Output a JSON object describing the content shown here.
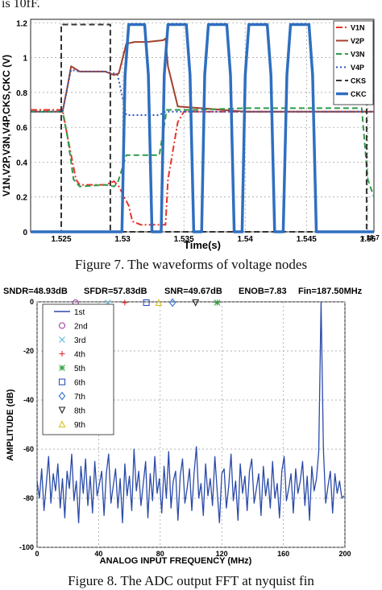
{
  "top_text": "is 10fF.",
  "figure7": {
    "caption": "Figure 7. The waveforms of voltage nodes",
    "chart_data": {
      "type": "line",
      "xlabel": "Time(s)",
      "ylabel": "V1N,V2P,V3N,V4P,CKS,CKC (V)",
      "x_multiplier": "x 10-7",
      "xlim": [
        1.5225,
        1.5505
      ],
      "ylim": [
        0,
        1.22
      ],
      "xticks": [
        "1.525",
        "1.53",
        "1.535",
        "1.54",
        "1.545",
        "1.55"
      ],
      "xtick_values": [
        1.525,
        1.53,
        1.535,
        1.54,
        1.545,
        1.55
      ],
      "yticks": [
        "0",
        "0.2",
        "0.4",
        "0.6",
        "0.8",
        "1",
        "1.2"
      ],
      "ytick_values": [
        0,
        0.2,
        0.4,
        0.6,
        0.8,
        1.0,
        1.2
      ],
      "grid": true,
      "legend_position": "top-right",
      "series": [
        {
          "name": "V1N",
          "color": "#e8332b",
          "style": "dashdot",
          "width": 2,
          "x": [
            1.5225,
            1.5251,
            1.5255,
            1.5262,
            1.5265,
            1.5286,
            1.5293,
            1.5297,
            1.5305,
            1.5308,
            1.5315,
            1.5335,
            1.5337,
            1.5345,
            1.535,
            1.54,
            1.545,
            1.5495,
            1.5505
          ],
          "y": [
            0.7,
            0.7,
            0.55,
            0.3,
            0.27,
            0.27,
            0.29,
            0.26,
            0.15,
            0.06,
            0.04,
            0.04,
            0.3,
            0.63,
            0.69,
            0.69,
            0.69,
            0.69,
            0.69
          ]
        },
        {
          "name": "V2P",
          "color": "#a3402c",
          "style": "solid",
          "width": 2,
          "x": [
            1.5225,
            1.5251,
            1.5255,
            1.5258,
            1.5265,
            1.5286,
            1.5293,
            1.5297,
            1.5303,
            1.531,
            1.532,
            1.5333,
            1.5335,
            1.5337,
            1.5345,
            1.54,
            1.545,
            1.5495,
            1.5505
          ],
          "y": [
            0.69,
            0.69,
            0.83,
            0.95,
            0.92,
            0.92,
            0.9,
            0.91,
            1.08,
            1.09,
            1.09,
            1.1,
            1.11,
            0.95,
            0.72,
            0.69,
            0.69,
            0.69,
            0.69
          ]
        },
        {
          "name": "V3N",
          "color": "#2e9b47",
          "style": "dashed",
          "width": 2,
          "x": [
            1.5225,
            1.5251,
            1.5255,
            1.526,
            1.5265,
            1.5286,
            1.5293,
            1.5296,
            1.5303,
            1.531,
            1.532,
            1.533,
            1.5336,
            1.5345,
            1.536,
            1.54,
            1.545,
            1.5495,
            1.55,
            1.5505
          ],
          "y": [
            0.69,
            0.69,
            0.55,
            0.3,
            0.26,
            0.27,
            0.26,
            0.28,
            0.44,
            0.44,
            0.44,
            0.44,
            0.7,
            0.7,
            0.7,
            0.71,
            0.71,
            0.71,
            0.3,
            0.2
          ]
        },
        {
          "name": "V4P",
          "color": "#3057c4",
          "style": "dotted",
          "width": 2,
          "x": [
            1.5225,
            1.5251,
            1.5255,
            1.5258,
            1.5265,
            1.5286,
            1.5293,
            1.5296,
            1.5303,
            1.531,
            1.532,
            1.533,
            1.5335,
            1.5345,
            1.54,
            1.545,
            1.5495,
            1.5505
          ],
          "y": [
            0.69,
            0.69,
            0.83,
            0.93,
            0.92,
            0.92,
            0.91,
            0.9,
            0.67,
            0.67,
            0.67,
            0.67,
            0.69,
            0.69,
            0.69,
            0.69,
            0.69,
            0.69
          ]
        },
        {
          "name": "CKS",
          "color": "#333333",
          "style": "dashed",
          "width": 2,
          "x": [
            1.5225,
            1.525,
            1.525,
            1.5261,
            1.5261,
            1.529,
            1.529,
            1.5499,
            1.5499,
            1.5505
          ],
          "y": [
            0.0,
            0.0,
            1.19,
            1.19,
            1.19,
            1.19,
            0.0,
            0.0,
            1.19,
            1.19
          ]
        },
        {
          "name": "CKC",
          "color": "#2f6fc0",
          "style": "solid",
          "width": 3.5,
          "x": [
            1.5225,
            1.52995,
            1.5302,
            1.5305,
            1.5318,
            1.5321,
            1.5324,
            1.53315,
            1.5334,
            1.5337,
            1.5352,
            1.5355,
            1.5358,
            1.53645,
            1.5367,
            1.537,
            1.5385,
            1.5388,
            1.5391,
            1.53975,
            1.54,
            1.5403,
            1.5418,
            1.5421,
            1.5424,
            1.5431,
            1.5434,
            1.5437,
            1.5452,
            1.5455,
            1.5458,
            1.5505
          ],
          "y": [
            0.0,
            0.0,
            0.9,
            1.19,
            1.19,
            0.9,
            0.0,
            0.0,
            0.9,
            1.19,
            1.19,
            0.9,
            0.0,
            0.0,
            0.9,
            1.19,
            1.19,
            0.9,
            0.0,
            0.0,
            0.9,
            1.19,
            1.19,
            0.9,
            0.0,
            0.0,
            0.9,
            1.19,
            1.19,
            0.9,
            0.0,
            0.0
          ]
        }
      ]
    }
  },
  "figure8": {
    "caption": "Figure 8. The ADC output FFT at nyquist fin",
    "chart_data": {
      "type": "line",
      "header": [
        "SNDR=48.93dB",
        "SFDR=57.83dB",
        "SNR=49.67dB",
        "ENOB=7.83",
        "Fin=187.50MHz"
      ],
      "xlabel": "ANALOG INPUT FREQUENCY (MHz)",
      "ylabel": "AMPLITUDE (dB)",
      "xlim": [
        0,
        200
      ],
      "ylim": [
        -100,
        0
      ],
      "xticks": [
        "0",
        "40",
        "80",
        "120",
        "160",
        "200"
      ],
      "xtick_values": [
        0,
        40,
        80,
        120,
        160,
        200
      ],
      "yticks": [
        "0",
        "-20",
        "-40",
        "-60",
        "-80",
        "-100"
      ],
      "ytick_values": [
        0,
        -20,
        -40,
        -60,
        -80,
        -100
      ],
      "grid": true,
      "legend_position": "top-left",
      "legend": [
        {
          "label": "1st",
          "marker": "line",
          "color": "#2a4aa8"
        },
        {
          "label": "2nd",
          "marker": "circle",
          "color": "#a03ca8"
        },
        {
          "label": "3rd",
          "marker": "x",
          "color": "#5ab8d8"
        },
        {
          "label": "4th",
          "marker": "plus",
          "color": "#e03030"
        },
        {
          "label": "5th",
          "marker": "star",
          "color": "#30a040"
        },
        {
          "label": "6th",
          "marker": "square",
          "color": "#3050c0"
        },
        {
          "label": "7th",
          "marker": "diamond",
          "color": "#3070d0"
        },
        {
          "label": "8th",
          "marker": "triangle-down",
          "color": "#222222"
        },
        {
          "label": "9th",
          "marker": "triangle-up",
          "color": "#d8c020"
        }
      ],
      "harmonics": [
        {
          "label": "2nd",
          "x": 25,
          "y": 0
        },
        {
          "label": "3rd",
          "x": 46,
          "y": 0
        },
        {
          "label": "4th",
          "x": 57,
          "y": 0
        },
        {
          "label": "5th",
          "x": 117,
          "y": 0
        },
        {
          "label": "6th",
          "x": 71,
          "y": 0
        },
        {
          "label": "7th",
          "x": 88,
          "y": 0
        },
        {
          "label": "8th",
          "x": 103,
          "y": 0
        },
        {
          "label": "9th",
          "x": 79,
          "y": 0
        }
      ],
      "series": [
        {
          "name": "1st",
          "color": "#2a4aa8",
          "x": [
            0,
            1.5,
            3,
            4.5,
            6,
            7.5,
            9,
            10.5,
            12,
            13.5,
            15,
            16.5,
            18,
            19.5,
            21,
            22.5,
            24,
            25.5,
            27,
            28.5,
            30,
            31.5,
            33,
            34.5,
            36,
            37.5,
            39,
            40.5,
            42,
            43.5,
            45,
            46.5,
            48,
            49.5,
            51,
            52.5,
            54,
            55.5,
            57,
            58.5,
            60,
            61.5,
            63,
            64.5,
            66,
            67.5,
            69,
            70.5,
            72,
            73.5,
            75,
            76.5,
            78,
            79.5,
            81,
            82.5,
            84,
            85.5,
            87,
            88.5,
            90,
            91.5,
            93,
            94.5,
            96,
            97.5,
            99,
            100.5,
            102,
            103.5,
            105,
            106.5,
            108,
            109.5,
            111,
            112.5,
            114,
            115.5,
            117,
            118.5,
            120,
            121.5,
            123,
            124.5,
            126,
            127.5,
            129,
            130.5,
            132,
            133.5,
            135,
            136.5,
            138,
            139.5,
            141,
            142.5,
            144,
            145.5,
            147,
            148.5,
            150,
            151.5,
            153,
            154.5,
            156,
            157.5,
            159,
            160.5,
            162,
            163.5,
            165,
            166.5,
            168,
            169.5,
            171,
            172.5,
            174,
            175.5,
            177,
            178.5,
            180,
            181.5,
            183,
            184.5,
            186,
            187.5,
            189,
            190.5,
            192,
            193.5,
            195,
            196.5,
            198,
            199.5
          ],
          "y": [
            -73,
            -80,
            -68,
            -85,
            -74,
            -63,
            -82,
            -70,
            -77,
            -66,
            -84,
            -72,
            -88,
            -69,
            -76,
            -62,
            -81,
            -73,
            -90,
            -67,
            -78,
            -64,
            -83,
            -71,
            -86,
            -65,
            -79,
            -74,
            -69,
            -87,
            -70,
            -62,
            -82,
            -75,
            -68,
            -84,
            -72,
            -90,
            -66,
            -79,
            -71,
            -85,
            -60,
            -77,
            -69,
            -83,
            -74,
            -65,
            -88,
            -70,
            -81,
            -63,
            -78,
            -72,
            -86,
            -67,
            -80,
            -61,
            -84,
            -73,
            -69,
            -89,
            -71,
            -64,
            -82,
            -76,
            -68,
            -85,
            -70,
            -59,
            -80,
            -74,
            -87,
            -66,
            -79,
            -72,
            -83,
            -63,
            -77,
            -90,
            -70,
            -68,
            -84,
            -75,
            -62,
            -81,
            -73,
            -89,
            -66,
            -78,
            -71,
            -85,
            -69,
            -64,
            -82,
            -76,
            -70,
            -87,
            -67,
            -79,
            -72,
            -84,
            -65,
            -80,
            -74,
            -88,
            -69,
            -63,
            -81,
            -76,
            -70,
            -86,
            -68,
            -78,
            -73,
            -65,
            -83,
            -71,
            -89,
            -67,
            -77,
            -72,
            -61,
            0,
            -60,
            -82,
            -75,
            -69,
            -86,
            -70,
            -78,
            -73,
            -80,
            -79
          ]
        }
      ]
    }
  }
}
